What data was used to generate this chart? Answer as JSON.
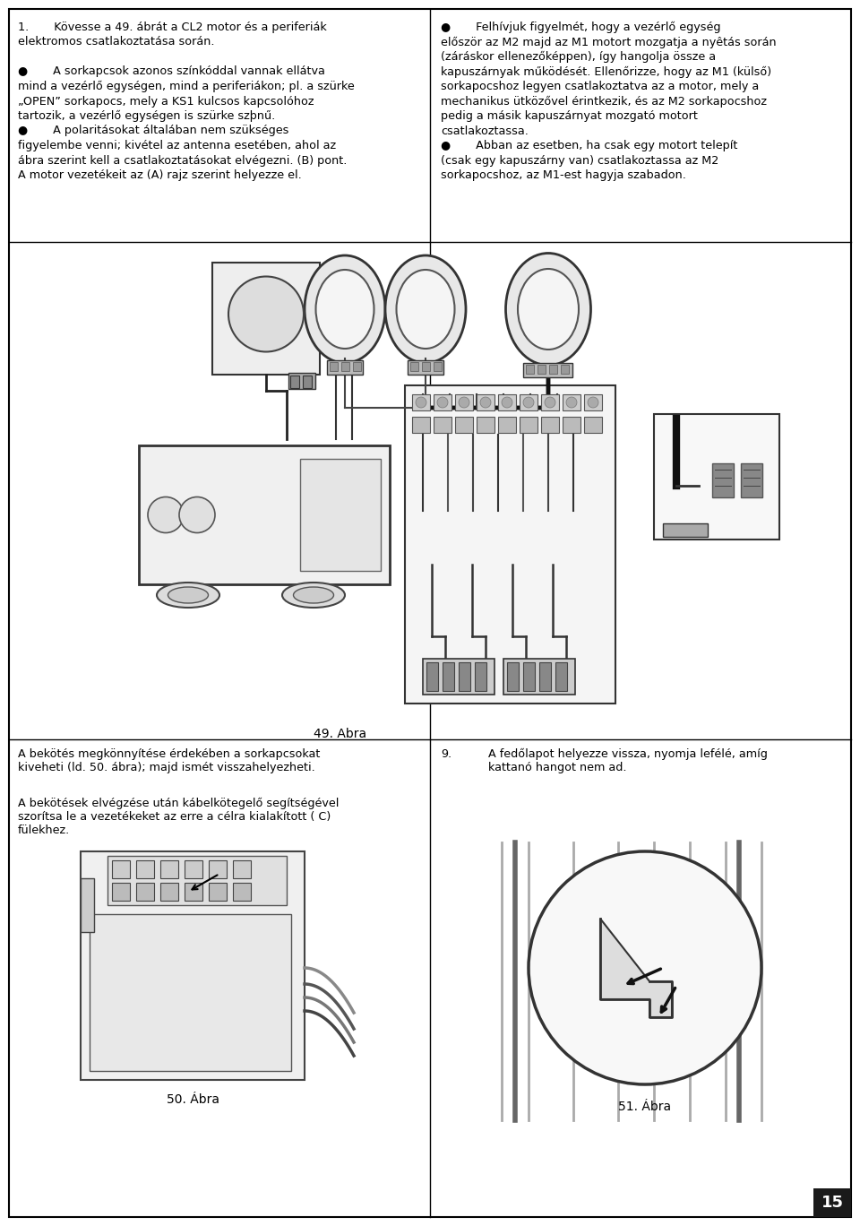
{
  "page_number": "15",
  "bg_color": "#ffffff",
  "border_color": "#000000",
  "text_color": "#000000",
  "top_left_text": [
    "1.       Kövesse a 49. ábrát a CL2 motor és a periferiák",
    "elektromos csatlakoztatása során.",
    "",
    "●       A sorkapcsok azonos színkóddal vannak ellátva",
    "mind a vezérlő egységen, mind a periferiákon; pl. a szürke",
    "„OPEN” sorkapocs, mely a KS1 kulcsos kapcsolóhoz",
    "tartozik, a vezérlő egységen is szürke szþnű.",
    "●       A polaritásokat általában nem szükséges",
    "figyelembe venni; kivétel az antenna esetében, ahol az",
    "ábra szerint kell a csatlakoztatásokat elvégezni. (B) pont.",
    "A motor vezetékeit az (A) rajz szerint helyezze el."
  ],
  "top_right_text": [
    "●       Felhívjuk figyelmét, hogy a vezérlő egység",
    "először az M2 majd az M1 motort mozgatja a nyêtás során",
    "(záráskor ellenezőképpen), így hangolja össze a",
    "kapuszárnyak működését. Ellenőrizze, hogy az M1 (külső)",
    "sorkapocshoz legyen csatlakoztatva az a motor, mely a",
    "mechanikus ütközővel érintkezik, és az M2 sorkapocshoz",
    "pedig a másik kapuszárnyat mozgató motort",
    "csatlakoztassa.",
    "●       Abban az esetben, ha csak egy motort telepít",
    "(csak egy kapuszárny van) csatlakoztassa az M2",
    "sorkapocshoz, az M1-est hagyja szabadon."
  ],
  "bottom_left_text_1": "A bekötés megkönnyítése érdekében a sorkapcsokat\nkiveheti (ld. 50. ábra); majd ismét visszahelyezheti.",
  "bottom_left_text_2": "A bekötések elvégzése után kábelkötegelő segítségével\nszorítsa le a vezetékeket az erre a célra kialakított ( C)\nfülekhez.",
  "bottom_right_text_num": "9.",
  "bottom_right_text_body": "A fedőlapot helyezze vissza, nyomja lefélé, amíg\nkattanó hangot nem ad.",
  "fig49_label": "49. Abra",
  "fig50_label": "50. Ábra",
  "fig51_label": "51. Ábra"
}
